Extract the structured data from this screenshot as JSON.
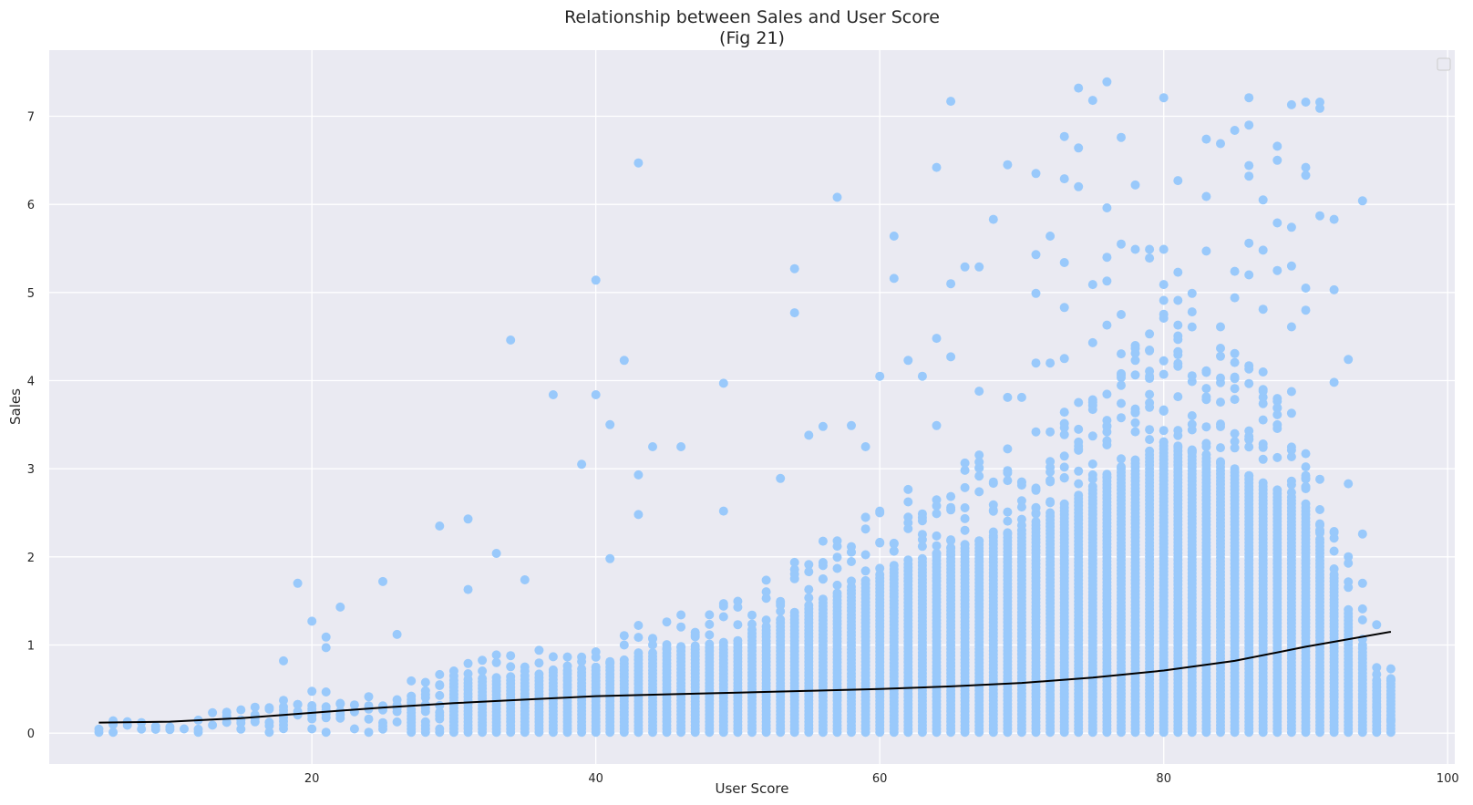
{
  "colors": {
    "plot_background": "#eaeaf2",
    "grid": "#ffffff",
    "points": "#99c9fb",
    "trend_line": "#000000",
    "legend_border": "#cccccc"
  },
  "chart_data": {
    "type": "scatter",
    "title_line1": "Relationship between Sales and User Score",
    "title_line2": "(Fig 21)",
    "xlabel": "User Score",
    "ylabel": "Sales",
    "xlim": [
      1.5,
      100.5
    ],
    "ylim": [
      -0.35,
      7.75
    ],
    "xticks": [
      20,
      40,
      60,
      80,
      100
    ],
    "yticks": [
      0,
      1,
      2,
      3,
      4,
      5,
      6,
      7
    ],
    "grid": true,
    "legend_placement": "top-right",
    "legend_entries": [],
    "trend_line": {
      "x": [
        5,
        10,
        15,
        20,
        25,
        30,
        35,
        40,
        45,
        50,
        55,
        60,
        65,
        70,
        75,
        80,
        85,
        90,
        96
      ],
      "y": [
        0.12,
        0.13,
        0.17,
        0.23,
        0.29,
        0.34,
        0.38,
        0.42,
        0.44,
        0.46,
        0.48,
        0.5,
        0.53,
        0.57,
        0.63,
        0.71,
        0.82,
        0.98,
        1.15
      ]
    },
    "outlier_points": [
      {
        "x": 19,
        "y": 1.7
      },
      {
        "x": 18,
        "y": 0.82
      },
      {
        "x": 20,
        "y": 1.27
      },
      {
        "x": 21,
        "y": 1.09
      },
      {
        "x": 21,
        "y": 0.97
      },
      {
        "x": 22,
        "y": 1.43
      },
      {
        "x": 25,
        "y": 1.72
      },
      {
        "x": 26,
        "y": 1.12
      },
      {
        "x": 29,
        "y": 2.35
      },
      {
        "x": 31,
        "y": 2.43
      },
      {
        "x": 31,
        "y": 1.63
      },
      {
        "x": 33,
        "y": 2.04
      },
      {
        "x": 34,
        "y": 4.46
      },
      {
        "x": 35,
        "y": 1.74
      },
      {
        "x": 37,
        "y": 3.84
      },
      {
        "x": 39,
        "y": 3.05
      },
      {
        "x": 40,
        "y": 5.14
      },
      {
        "x": 40,
        "y": 3.84
      },
      {
        "x": 41,
        "y": 3.5
      },
      {
        "x": 41,
        "y": 1.98
      },
      {
        "x": 42,
        "y": 4.23
      },
      {
        "x": 43,
        "y": 6.47
      },
      {
        "x": 43,
        "y": 2.93
      },
      {
        "x": 43,
        "y": 2.48
      },
      {
        "x": 44,
        "y": 3.25
      },
      {
        "x": 46,
        "y": 3.25
      },
      {
        "x": 49,
        "y": 3.97
      },
      {
        "x": 49,
        "y": 2.52
      },
      {
        "x": 53,
        "y": 2.89
      },
      {
        "x": 54,
        "y": 5.27
      },
      {
        "x": 54,
        "y": 4.77
      },
      {
        "x": 55,
        "y": 3.38
      },
      {
        "x": 56,
        "y": 3.48
      },
      {
        "x": 57,
        "y": 6.08
      },
      {
        "x": 58,
        "y": 3.49
      },
      {
        "x": 59,
        "y": 3.25
      },
      {
        "x": 60,
        "y": 4.05
      },
      {
        "x": 61,
        "y": 5.64
      },
      {
        "x": 61,
        "y": 5.16
      },
      {
        "x": 62,
        "y": 4.23
      },
      {
        "x": 63,
        "y": 4.05
      },
      {
        "x": 64,
        "y": 6.42
      },
      {
        "x": 64,
        "y": 4.48
      },
      {
        "x": 64,
        "y": 3.49
      },
      {
        "x": 65,
        "y": 7.17
      },
      {
        "x": 65,
        "y": 5.1
      },
      {
        "x": 65,
        "y": 4.27
      },
      {
        "x": 66,
        "y": 5.29
      },
      {
        "x": 67,
        "y": 5.29
      },
      {
        "x": 67,
        "y": 3.88
      },
      {
        "x": 68,
        "y": 5.83
      },
      {
        "x": 69,
        "y": 6.45
      },
      {
        "x": 69,
        "y": 3.81
      },
      {
        "x": 70,
        "y": 3.81
      },
      {
        "x": 71,
        "y": 6.35
      },
      {
        "x": 71,
        "y": 5.43
      },
      {
        "x": 71,
        "y": 4.99
      },
      {
        "x": 71,
        "y": 4.2
      },
      {
        "x": 72,
        "y": 5.64
      },
      {
        "x": 72,
        "y": 4.2
      },
      {
        "x": 73,
        "y": 6.77
      },
      {
        "x": 73,
        "y": 6.29
      },
      {
        "x": 73,
        "y": 5.34
      },
      {
        "x": 73,
        "y": 4.83
      },
      {
        "x": 73,
        "y": 4.25
      },
      {
        "x": 74,
        "y": 7.32
      },
      {
        "x": 74,
        "y": 6.64
      },
      {
        "x": 74,
        "y": 6.2
      },
      {
        "x": 75,
        "y": 7.18
      },
      {
        "x": 75,
        "y": 5.09
      },
      {
        "x": 75,
        "y": 4.43
      },
      {
        "x": 76,
        "y": 7.39
      },
      {
        "x": 76,
        "y": 5.96
      },
      {
        "x": 76,
        "y": 5.4
      },
      {
        "x": 76,
        "y": 5.13
      },
      {
        "x": 76,
        "y": 4.63
      },
      {
        "x": 77,
        "y": 6.76
      },
      {
        "x": 77,
        "y": 5.55
      },
      {
        "x": 77,
        "y": 4.75
      },
      {
        "x": 78,
        "y": 6.22
      },
      {
        "x": 78,
        "y": 5.49
      },
      {
        "x": 78,
        "y": 4.23
      },
      {
        "x": 79,
        "y": 5.49
      },
      {
        "x": 79,
        "y": 5.39
      },
      {
        "x": 79,
        "y": 4.53
      },
      {
        "x": 80,
        "y": 7.21
      },
      {
        "x": 80,
        "y": 5.49
      },
      {
        "x": 80,
        "y": 5.09
      },
      {
        "x": 80,
        "y": 4.91
      },
      {
        "x": 81,
        "y": 6.27
      },
      {
        "x": 81,
        "y": 5.23
      },
      {
        "x": 81,
        "y": 4.91
      },
      {
        "x": 81,
        "y": 4.63
      },
      {
        "x": 82,
        "y": 4.99
      },
      {
        "x": 82,
        "y": 4.78
      },
      {
        "x": 83,
        "y": 6.74
      },
      {
        "x": 83,
        "y": 6.09
      },
      {
        "x": 83,
        "y": 5.47
      },
      {
        "x": 84,
        "y": 6.69
      },
      {
        "x": 84,
        "y": 4.61
      },
      {
        "x": 85,
        "y": 6.84
      },
      {
        "x": 85,
        "y": 5.24
      },
      {
        "x": 85,
        "y": 4.94
      },
      {
        "x": 86,
        "y": 7.21
      },
      {
        "x": 86,
        "y": 6.9
      },
      {
        "x": 86,
        "y": 6.44
      },
      {
        "x": 86,
        "y": 6.32
      },
      {
        "x": 86,
        "y": 5.56
      },
      {
        "x": 86,
        "y": 5.2
      },
      {
        "x": 87,
        "y": 6.05
      },
      {
        "x": 87,
        "y": 5.48
      },
      {
        "x": 87,
        "y": 4.81
      },
      {
        "x": 88,
        "y": 6.66
      },
      {
        "x": 88,
        "y": 6.5
      },
      {
        "x": 88,
        "y": 5.79
      },
      {
        "x": 88,
        "y": 5.25
      },
      {
        "x": 89,
        "y": 7.13
      },
      {
        "x": 89,
        "y": 5.74
      },
      {
        "x": 89,
        "y": 5.3
      },
      {
        "x": 89,
        "y": 4.61
      },
      {
        "x": 90,
        "y": 7.16
      },
      {
        "x": 90,
        "y": 6.42
      },
      {
        "x": 90,
        "y": 6.33
      },
      {
        "x": 90,
        "y": 5.05
      },
      {
        "x": 90,
        "y": 4.8
      },
      {
        "x": 91,
        "y": 7.16
      },
      {
        "x": 91,
        "y": 7.09
      },
      {
        "x": 91,
        "y": 5.87
      },
      {
        "x": 92,
        "y": 5.83
      },
      {
        "x": 92,
        "y": 5.03
      },
      {
        "x": 92,
        "y": 3.98
      },
      {
        "x": 93,
        "y": 4.24
      },
      {
        "x": 94,
        "y": 6.04
      },
      {
        "x": 93,
        "y": 2.83
      },
      {
        "x": 94,
        "y": 2.26
      },
      {
        "x": 94,
        "y": 1.7
      },
      {
        "x": 95,
        "y": 1.23
      },
      {
        "x": 96,
        "y": 0.6
      },
      {
        "x": 95,
        "y": 0.3
      },
      {
        "x": 96,
        "y": 0.15
      }
    ],
    "dense_band": {
      "x_min": 5,
      "x_max": 96,
      "y_max_by_x": {
        "x": [
          5,
          10,
          15,
          20,
          25,
          30,
          35,
          40,
          45,
          50,
          55,
          60,
          65,
          70,
          75,
          80,
          85,
          90,
          95
        ],
        "y": [
          0.15,
          0.1,
          0.22,
          0.35,
          0.3,
          0.6,
          0.65,
          0.75,
          0.95,
          1.05,
          1.45,
          1.8,
          2.1,
          2.3,
          2.8,
          3.3,
          3.0,
          2.6,
          0.6
        ]
      }
    }
  }
}
